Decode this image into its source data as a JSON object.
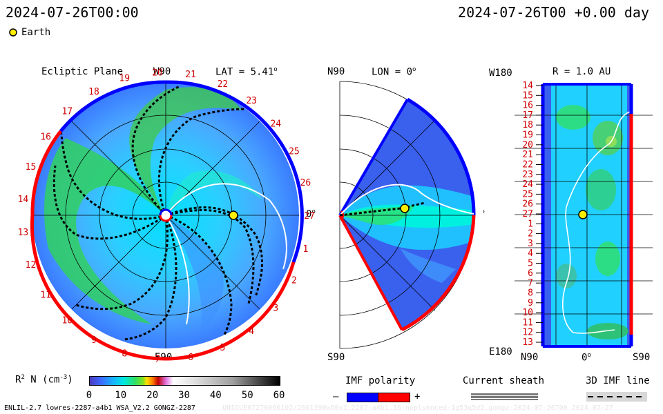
{
  "header": {
    "left_time": "2024-07-26T00:00",
    "right_time": "2024-07-26T00 +0.00 day"
  },
  "legend": {
    "earth_label": "Earth"
  },
  "ecliptic": {
    "title": "Ecliptic Plane",
    "top_label": "W90",
    "lat_label": "LAT = 5.41",
    "lat_degree": "o",
    "bottom_label": "E90",
    "right_label": "0",
    "right_degree": "o",
    "carrington_labels": [
      "19",
      "20",
      "21",
      "22",
      "23",
      "24",
      "25",
      "26",
      "27",
      "1",
      "2",
      "3",
      "4",
      "5",
      "6",
      "7",
      "8",
      "9",
      "10",
      "11",
      "12",
      "13",
      "14",
      "15",
      "16",
      "17",
      "18"
    ]
  },
  "meridional": {
    "top_label": "N90",
    "lon_label": "LON = 0",
    "lon_degree": "o",
    "bottom_label": "S90",
    "right_label": "0",
    "right_degree": "o"
  },
  "radial": {
    "top_label": "W180",
    "r_label": "R = 1.0 AU",
    "bottom_label": "E180",
    "x_labels": [
      "N90",
      "0",
      "S90"
    ],
    "x_degree": "o",
    "y_labels": [
      "14",
      "15",
      "16",
      "17",
      "18",
      "19",
      "20",
      "21",
      "22",
      "23",
      "24",
      "25",
      "26",
      "27",
      "1",
      "2",
      "3",
      "4",
      "5",
      "6",
      "7",
      "8",
      "9",
      "10",
      "11",
      "12",
      "13"
    ]
  },
  "colorbar": {
    "title": "R",
    "title_sup": "2",
    "title_rest": " N (cm",
    "title_exp": "-3",
    "title_end": ")",
    "ticks": [
      "0",
      "10",
      "20",
      "30",
      "40",
      "50",
      "60"
    ],
    "range": [
      0,
      60
    ]
  },
  "imf_polarity": {
    "title": "IMF polarity",
    "minus": "–",
    "plus": "+"
  },
  "current_sheath": {
    "title": "Current sheath"
  },
  "imf_line": {
    "title": "3D IMF line"
  },
  "footer": {
    "left": "ENLIL-2.7 lowres-2287-a4b1 WSA_V2.2 GONGZ-2287",
    "right": "UNIQUE07270066102/2661390x60x1.2287-a4b1.16-noplsmnced-1g53q5d2.gongz-2024-07-26T00 2024-07-27"
  },
  "colors": {
    "polarity_negative": "#0000ff",
    "polarity_positive": "#ff0000",
    "earth": "#ffee00",
    "label_red": "#d00000"
  }
}
